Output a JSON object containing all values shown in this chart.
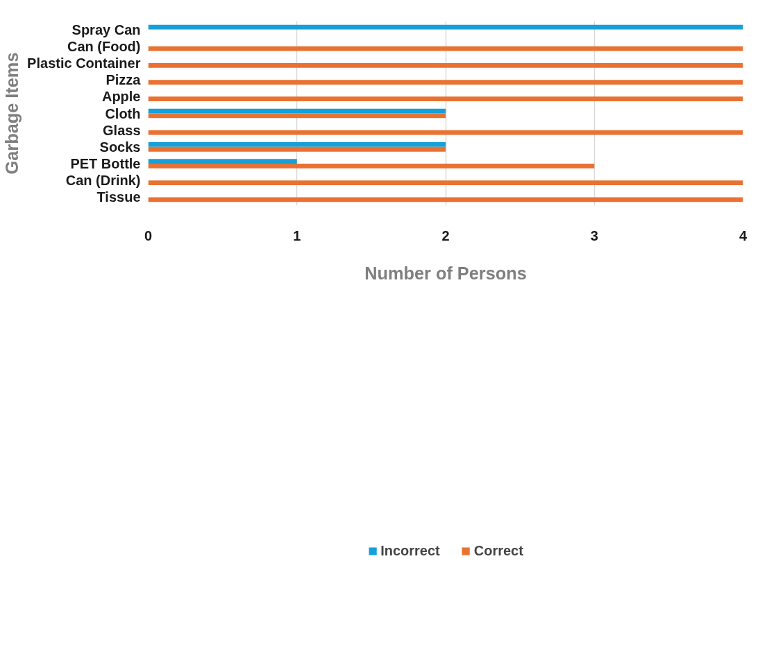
{
  "chart_data": {
    "type": "bar",
    "orientation": "horizontal",
    "xlabel": "Number of Persons",
    "ylabel": "Garbage Items",
    "categories": [
      "Spray Can",
      "Can (Food)",
      "Plastic Container",
      "Pizza",
      "Apple",
      "Cloth",
      "Glass",
      "Socks",
      "PET Bottle",
      "Can (Drink)",
      "Tissue"
    ],
    "series": [
      {
        "name": "Incorrect",
        "color": "#16a0d8",
        "values": [
          4,
          null,
          null,
          null,
          null,
          2,
          null,
          2,
          1,
          null,
          null
        ]
      },
      {
        "name": "Correct",
        "color": "#e97132",
        "values": [
          null,
          4,
          4,
          4,
          4,
          2,
          4,
          2,
          3,
          4,
          4
        ]
      }
    ],
    "xlim": [
      0,
      4
    ],
    "xticks": [
      0,
      1,
      2,
      3,
      4
    ],
    "grid": "x",
    "legend": "bottom"
  }
}
